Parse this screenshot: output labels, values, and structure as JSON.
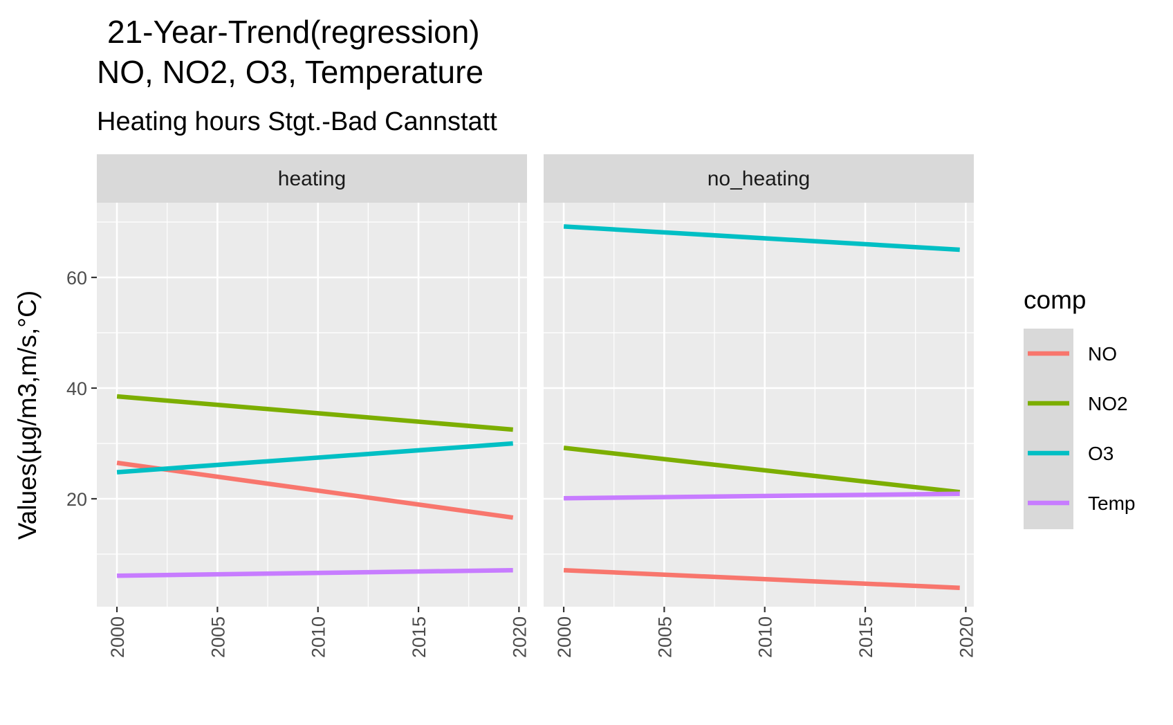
{
  "chart_data": {
    "type": "line",
    "title_line1": "21-Year-Trend(regression)",
    "title_line2": "NO, NO2, O3, Temperature",
    "subtitle": "Heating hours Stgt.-Bad Cannstatt",
    "xlabel": "",
    "ylabel": "Values(µg/m3,m/s,°C)",
    "x_range": [
      1999,
      2020.4
    ],
    "y_range": [
      0.5,
      73.5
    ],
    "x_ticks": [
      "2000",
      "2005",
      "2010",
      "2015",
      "2020"
    ],
    "y_ticks": [
      "20",
      "40",
      "60"
    ],
    "legend_title": "comp",
    "legend_position": "right",
    "colors": {
      "NO": "#F8766D",
      "NO2": "#7CAE00",
      "O3": "#00BFC4",
      "Temp": "#C77CFF"
    },
    "facets": [
      {
        "label": "heating",
        "series": [
          {
            "name": "NO",
            "x": [
              2000,
              2019.7
            ],
            "y": [
              26.5,
              16.6
            ]
          },
          {
            "name": "NO2",
            "x": [
              2000,
              2019.7
            ],
            "y": [
              38.5,
              32.5
            ]
          },
          {
            "name": "O3",
            "x": [
              2000,
              2019.7
            ],
            "y": [
              24.8,
              30.0
            ]
          },
          {
            "name": "Temp",
            "x": [
              2000,
              2019.7
            ],
            "y": [
              6.1,
              7.1
            ]
          }
        ]
      },
      {
        "label": "no_heating",
        "series": [
          {
            "name": "NO",
            "x": [
              2000,
              2019.7
            ],
            "y": [
              7.1,
              3.9
            ]
          },
          {
            "name": "NO2",
            "x": [
              2000,
              2019.7
            ],
            "y": [
              29.2,
              21.2
            ]
          },
          {
            "name": "O3",
            "x": [
              2000,
              2019.7
            ],
            "y": [
              69.2,
              65.0
            ]
          },
          {
            "name": "Temp",
            "x": [
              2000,
              2019.7
            ],
            "y": [
              20.1,
              20.9
            ]
          }
        ]
      }
    ]
  }
}
